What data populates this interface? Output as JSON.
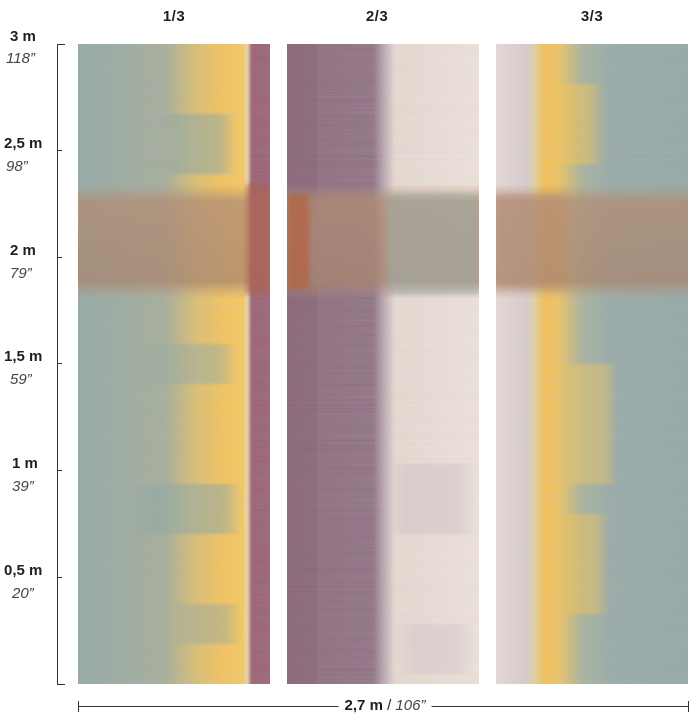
{
  "panels": [
    {
      "label": "1/3"
    },
    {
      "label": "2/3"
    },
    {
      "label": "3/3"
    }
  ],
  "height_marks": [
    {
      "metric": "3 m",
      "imperial": "118”"
    },
    {
      "metric": "2,5 m",
      "imperial": "98”"
    },
    {
      "metric": "2 m",
      "imperial": "79”"
    },
    {
      "metric": "1,5 m",
      "imperial": "59”"
    },
    {
      "metric": "1 m",
      "imperial": "39”"
    },
    {
      "metric": "0,5 m",
      "imperial": "20”"
    }
  ],
  "width": {
    "metric": "2,7 m",
    "separator": " / ",
    "imperial": "106”"
  },
  "colors": {
    "teal": "#93a9a6",
    "yellow": "#f5c453",
    "plum": "#8b6a7e",
    "cream": "#ece1d8",
    "rust": "#b55a35",
    "tan": "#b8927a"
  }
}
